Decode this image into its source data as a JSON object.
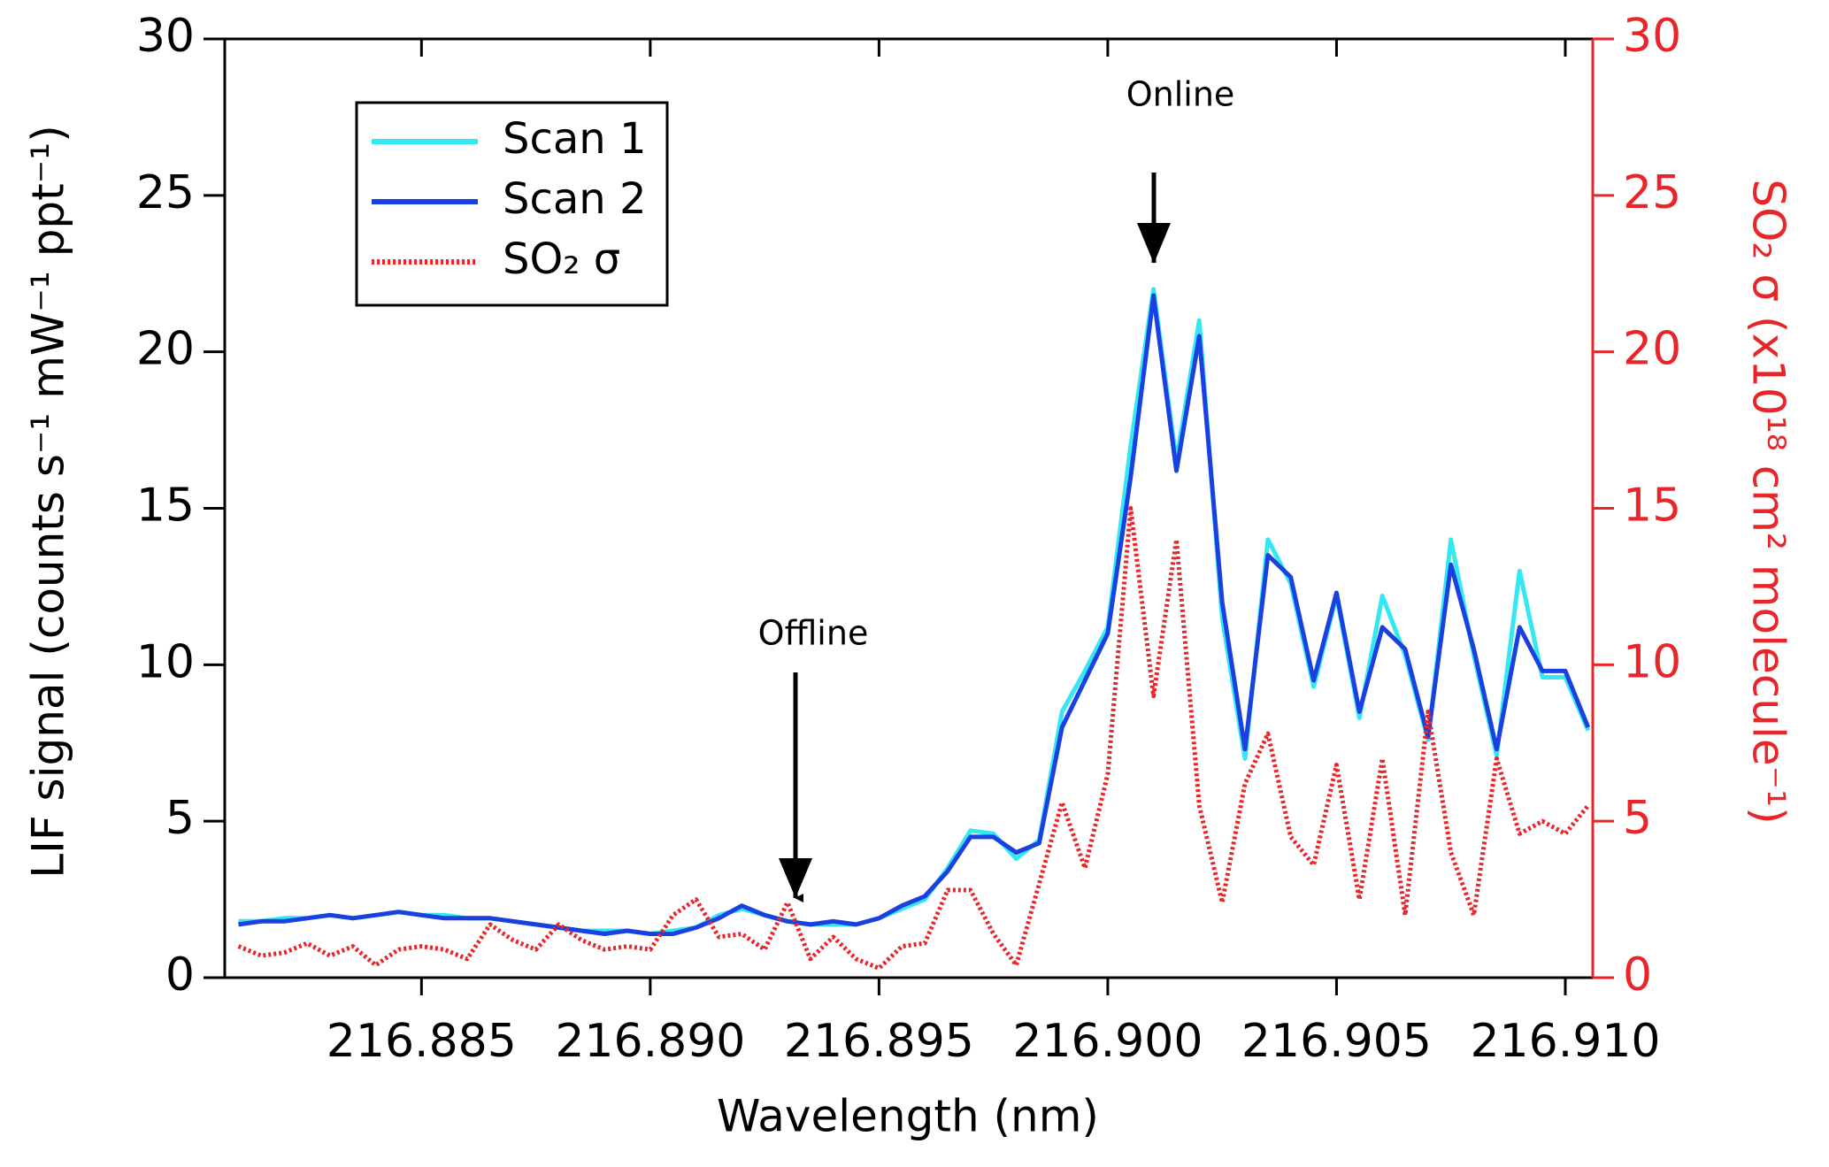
{
  "chart_data": {
    "type": "line",
    "x_label": "Wavelength (nm)",
    "y_label": "LIF signal (counts s⁻¹ mW⁻¹ ppt⁻¹)",
    "y2_label": "SO₂ σ (x10¹⁸ cm² molecule⁻¹)",
    "annotations": [
      "Offline",
      "Online"
    ],
    "x": [
      216.881,
      216.8815,
      216.882,
      216.8825,
      216.883,
      216.8835,
      216.884,
      216.8845,
      216.885,
      216.8855,
      216.886,
      216.8865,
      216.887,
      216.8875,
      216.888,
      216.8885,
      216.889,
      216.8895,
      216.89,
      216.8905,
      216.891,
      216.8915,
      216.892,
      216.8925,
      216.893,
      216.8935,
      216.894,
      216.8945,
      216.895,
      216.8955,
      216.896,
      216.8965,
      216.897,
      216.8975,
      216.898,
      216.8985,
      216.899,
      216.8995,
      216.9,
      216.9005,
      216.901,
      216.9015,
      216.902,
      216.9025,
      216.903,
      216.9035,
      216.904,
      216.9045,
      216.905,
      216.9055,
      216.906,
      216.9065,
      216.907,
      216.9075,
      216.908,
      216.9085,
      216.909,
      216.9095,
      216.91,
      216.9105
    ],
    "series": [
      {
        "name": "Scan 1",
        "color": "#33e8f2",
        "dash": false,
        "values": [
          1.8,
          1.8,
          1.9,
          1.9,
          2.0,
          1.9,
          2.0,
          2.1,
          2.0,
          2.0,
          1.9,
          1.9,
          1.8,
          1.7,
          1.6,
          1.5,
          1.5,
          1.5,
          1.4,
          1.5,
          1.6,
          2.0,
          2.2,
          2.0,
          1.8,
          1.7,
          1.7,
          1.7,
          1.9,
          2.2,
          2.5,
          3.5,
          4.7,
          4.6,
          3.8,
          4.4,
          8.5,
          9.8,
          11.2,
          17,
          22,
          16.5,
          21,
          11.5,
          7.0,
          14,
          12.6,
          9.3,
          12.2,
          8.3,
          12.2,
          10.3,
          7.6,
          14,
          10.3,
          7.1,
          13,
          9.6,
          9.6,
          7.9
        ]
      },
      {
        "name": "Scan 2",
        "color": "#1a40e0",
        "dash": false,
        "values": [
          1.7,
          1.8,
          1.8,
          1.9,
          2.0,
          1.9,
          2.0,
          2.1,
          2.0,
          1.9,
          1.9,
          1.9,
          1.8,
          1.7,
          1.6,
          1.5,
          1.4,
          1.5,
          1.4,
          1.4,
          1.6,
          1.9,
          2.3,
          2.0,
          1.8,
          1.7,
          1.8,
          1.7,
          1.9,
          2.3,
          2.6,
          3.4,
          4.5,
          4.5,
          4.0,
          4.3,
          8.0,
          9.5,
          11.0,
          16,
          21.8,
          16.2,
          20.5,
          12,
          7.3,
          13.5,
          12.8,
          9.5,
          12.3,
          8.5,
          11.2,
          10.5,
          7.7,
          13.2,
          10.5,
          7.3,
          11.2,
          9.8,
          9.8,
          8.0
        ]
      },
      {
        "name": "SO₂ σ",
        "color": "#e8262a",
        "dash": true,
        "axis": "y2",
        "values": [
          1.0,
          0.7,
          0.8,
          1.1,
          0.7,
          1.0,
          0.4,
          0.9,
          1.0,
          0.9,
          0.6,
          1.7,
          1.2,
          0.9,
          1.7,
          1.2,
          0.9,
          1.0,
          0.9,
          2.0,
          2.5,
          1.3,
          1.4,
          0.9,
          2.4,
          0.6,
          1.3,
          0.6,
          0.3,
          1.0,
          1.1,
          2.8,
          2.8,
          1.4,
          0.4,
          3.0,
          5.6,
          3.5,
          6.5,
          15,
          9.0,
          14,
          5.5,
          2.4,
          6.2,
          7.8,
          4.5,
          3.6,
          6.8,
          2.5,
          7.0,
          2.0,
          8.5,
          4.0,
          2.0,
          7.0,
          4.6,
          5.0,
          4.6,
          5.5
        ]
      }
    ],
    "xlim": [
      216.8807,
      216.9106
    ],
    "xticks": [
      {
        "value": 216.885,
        "label": "216.885"
      },
      {
        "value": 216.89,
        "label": "216.890"
      },
      {
        "value": 216.895,
        "label": "216.895"
      },
      {
        "value": 216.9,
        "label": "216.900"
      },
      {
        "value": 216.905,
        "label": "216.905"
      },
      {
        "value": 216.91,
        "label": "216.910"
      }
    ],
    "ylim": [
      0,
      30
    ],
    "yticks": [
      0,
      5,
      10,
      15,
      20,
      25,
      30
    ],
    "y2lim": [
      0,
      30
    ],
    "y2ticks": [
      0,
      5,
      10,
      15,
      20,
      25,
      30
    ],
    "y2color": "#e8262a"
  }
}
